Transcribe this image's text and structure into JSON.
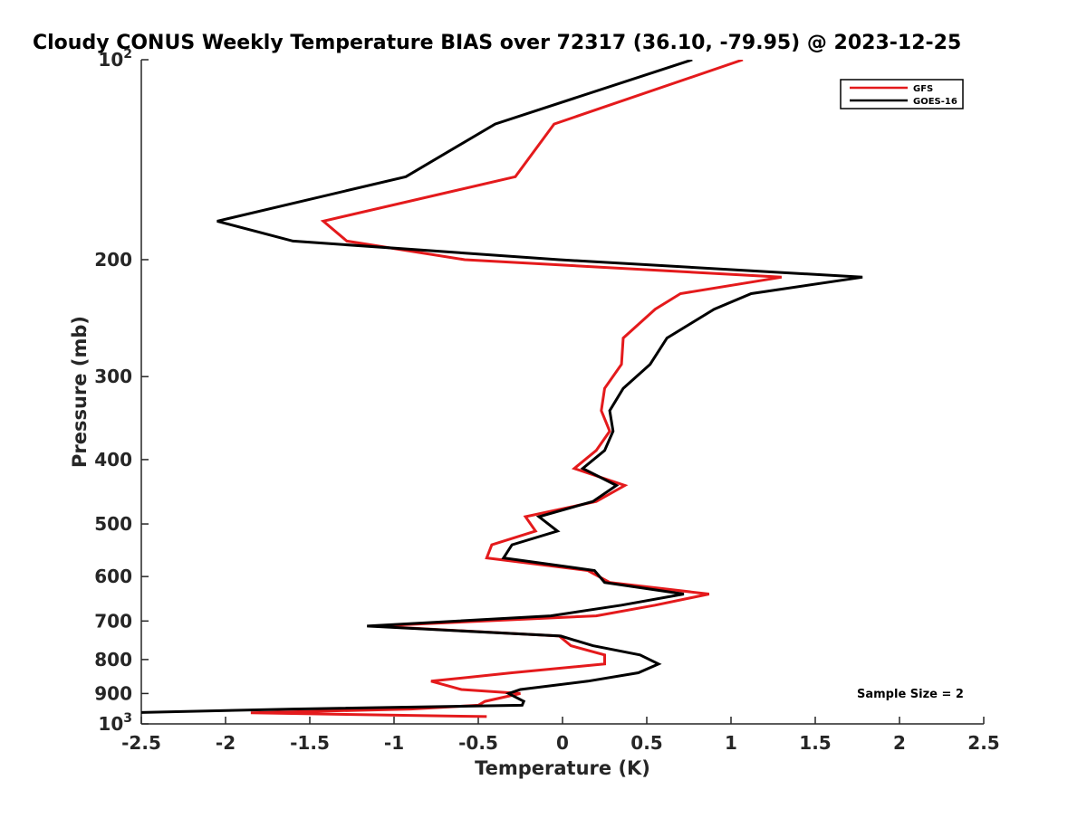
{
  "chart_data": {
    "type": "line",
    "title": "Cloudy CONUS Weekly Temperature BIAS over 72317 (36.10, -79.95) @ 2023-12-25",
    "xlabel": "Temperature (K)",
    "ylabel": "Pressure (mb)",
    "xlim": [
      -2.5,
      2.5
    ],
    "ylim": [
      100,
      1000
    ],
    "y_scale": "log",
    "y_reversed": true,
    "grid": false,
    "legend_position": "top-right",
    "x_ticks": [
      -2.5,
      -2,
      -1.5,
      -1,
      -0.5,
      0,
      0.5,
      1,
      1.5,
      2,
      2.5
    ],
    "x_tick_labels": [
      "-2.5",
      "-2",
      "-1.5",
      "-1",
      "-0.5",
      "0",
      "0.5",
      "1",
      "1.5",
      "2",
      "2.5"
    ],
    "y_ticks": [
      100,
      200,
      300,
      400,
      500,
      600,
      700,
      800,
      900,
      1000
    ],
    "y_tick_labels": [
      {
        "base": "10",
        "exp": "2"
      },
      {
        "base": "200",
        "exp": ""
      },
      {
        "base": "300",
        "exp": ""
      },
      {
        "base": "400",
        "exp": ""
      },
      {
        "base": "500",
        "exp": ""
      },
      {
        "base": "600",
        "exp": ""
      },
      {
        "base": "700",
        "exp": ""
      },
      {
        "base": "800",
        "exp": ""
      },
      {
        "base": "900",
        "exp": ""
      },
      {
        "base": "10",
        "exp": "3"
      }
    ],
    "annotation": "Sample Size = 2",
    "series": [
      {
        "name": "GFS",
        "color": "#e41a1c",
        "points": [
          [
            1.07,
            100
          ],
          [
            -0.05,
            125
          ],
          [
            -0.28,
            150
          ],
          [
            -1.42,
            175
          ],
          [
            -1.28,
            187.5
          ],
          [
            -0.58,
            200
          ],
          [
            1.3,
            212.5
          ],
          [
            0.7,
            225
          ],
          [
            0.55,
            237.5
          ],
          [
            0.36,
            262.5
          ],
          [
            0.35,
            287.5
          ],
          [
            0.25,
            312.5
          ],
          [
            0.23,
            337.5
          ],
          [
            0.28,
            362.5
          ],
          [
            0.2,
            387.5
          ],
          [
            0.07,
            412.5
          ],
          [
            0.37,
            437.5
          ],
          [
            0.2,
            462.5
          ],
          [
            -0.22,
            487.5
          ],
          [
            -0.16,
            512.5
          ],
          [
            -0.42,
            537.5
          ],
          [
            -0.45,
            562.5
          ],
          [
            0.15,
            587.5
          ],
          [
            0.28,
            612.5
          ],
          [
            0.87,
            637.5
          ],
          [
            0.55,
            662.5
          ],
          [
            0.2,
            687.5
          ],
          [
            -1.12,
            712.5
          ],
          [
            -0.02,
            737.5
          ],
          [
            0.05,
            762.5
          ],
          [
            0.25,
            787.5
          ],
          [
            0.25,
            812.5
          ],
          [
            -0.3,
            837.5
          ],
          [
            -0.78,
            862.5
          ],
          [
            -0.6,
            887.5
          ],
          [
            -0.25,
            900
          ],
          [
            -0.46,
            925
          ],
          [
            -0.5,
            937.5
          ],
          [
            -0.9,
            950
          ],
          [
            -1.85,
            962.5
          ],
          [
            -0.45,
            975
          ]
        ]
      },
      {
        "name": "GOES-16",
        "color": "#000000",
        "points": [
          [
            0.77,
            100
          ],
          [
            -0.4,
            125
          ],
          [
            -0.93,
            150
          ],
          [
            -2.05,
            175
          ],
          [
            -1.6,
            187.5
          ],
          [
            -0.02,
            200
          ],
          [
            1.78,
            212.5
          ],
          [
            1.12,
            225
          ],
          [
            0.9,
            237.5
          ],
          [
            0.62,
            262.5
          ],
          [
            0.52,
            287.5
          ],
          [
            0.36,
            312.5
          ],
          [
            0.28,
            337.5
          ],
          [
            0.3,
            362.5
          ],
          [
            0.25,
            387.5
          ],
          [
            0.12,
            412.5
          ],
          [
            0.32,
            437.5
          ],
          [
            0.18,
            462.5
          ],
          [
            -0.14,
            487.5
          ],
          [
            -0.03,
            512.5
          ],
          [
            -0.3,
            537.5
          ],
          [
            -0.35,
            562.5
          ],
          [
            0.19,
            587.5
          ],
          [
            0.25,
            612.5
          ],
          [
            0.72,
            637.5
          ],
          [
            0.35,
            662.5
          ],
          [
            -0.07,
            687.5
          ],
          [
            -1.16,
            712.5
          ],
          [
            -0.01,
            737.5
          ],
          [
            0.18,
            762.5
          ],
          [
            0.46,
            787.5
          ],
          [
            0.57,
            812.5
          ],
          [
            0.45,
            837.5
          ],
          [
            0.15,
            862.5
          ],
          [
            -0.25,
            887.5
          ],
          [
            -0.32,
            900
          ],
          [
            -0.23,
            925
          ],
          [
            -0.24,
            937.5
          ],
          [
            -1.6,
            950
          ],
          [
            -2.6,
            962.5
          ]
        ]
      }
    ]
  }
}
